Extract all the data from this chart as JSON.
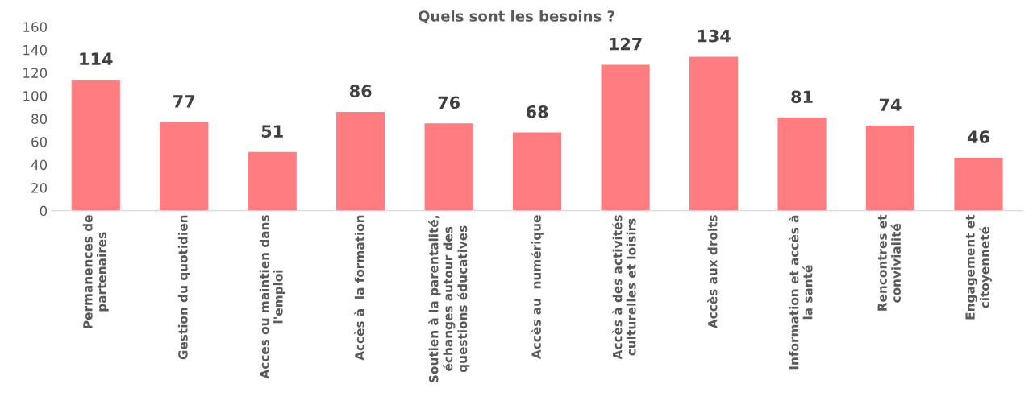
{
  "chart_data": {
    "type": "bar",
    "title": "Quels sont les besoins ?",
    "categories": [
      "Permanences de\npartenaires",
      "Gestion du quotidien",
      "Acces ou maintien dans\nl'emploi",
      "Accès à  la formation",
      "Soutien à la parentalité,\néchanges autour des\nquestions éducatives",
      "Accès au  numérique",
      "Accès à des activités\nculturelles et loisirs",
      "Accès aux droits",
      "Information et accès à\nla santé",
      "Rencontres et\nconvivialité",
      "Engagement et\ncitoyenneté"
    ],
    "values": [
      114,
      77,
      51,
      86,
      76,
      68,
      127,
      134,
      81,
      74,
      46
    ],
    "color": "#ff7c80",
    "ylim": [
      0,
      160
    ],
    "yticks": [
      0,
      20,
      40,
      60,
      80,
      100,
      120,
      140,
      160
    ],
    "grid": false,
    "data_labels": true
  }
}
